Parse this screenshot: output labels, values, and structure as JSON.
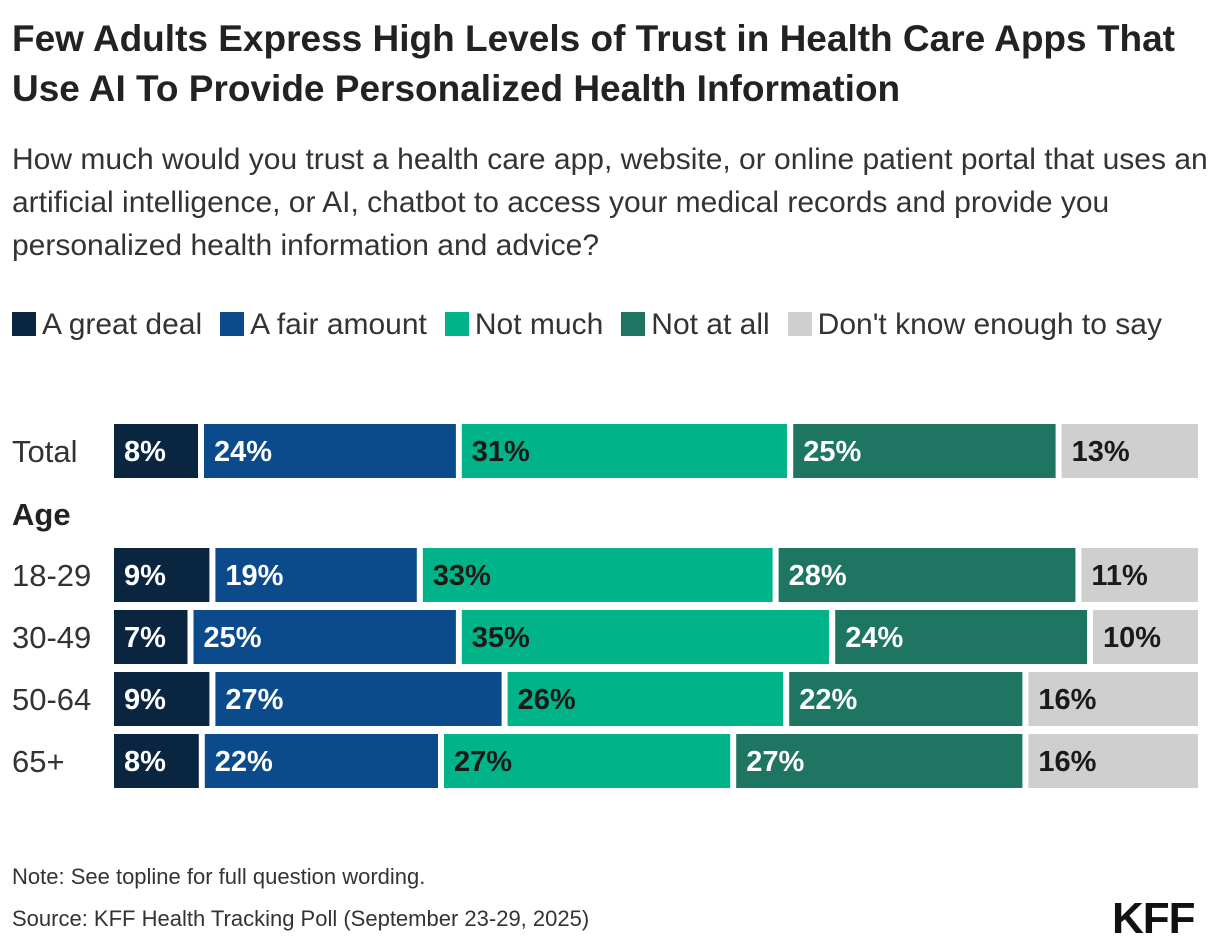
{
  "title": "Few Adults Express High Levels of Trust in Health Care Apps That Use AI To Provide Personalized Health Information",
  "subtitle": "How much would you trust a health care app, website, or online patient portal that uses an artificial intelligence, or AI, chatbot to access your medical records and provide you personalized health information and advice?",
  "note": "Note: See topline for full question wording.",
  "source": "Source: KFF Health Tracking Poll (September 23-29, 2025)",
  "logo": "KFF",
  "chart_data": {
    "type": "bar",
    "orientation": "horizontal",
    "stacked": true,
    "legend_position": "top",
    "value_labels": "percent",
    "series": [
      {
        "name": "A great deal",
        "color": "#0a2540",
        "label_color": "#ffffff"
      },
      {
        "name": "A fair amount",
        "color": "#0b4b8c",
        "label_color": "#ffffff"
      },
      {
        "name": "Not much",
        "color": "#00b388",
        "label_color": "#1a1a1a"
      },
      {
        "name": "Not at all",
        "color": "#1e7561",
        "label_color": "#ffffff"
      },
      {
        "name": "Don't know enough to say",
        "color": "#cfcfcf",
        "label_color": "#1a1a1a"
      }
    ],
    "rows": [
      {
        "label": "Total",
        "values": [
          8,
          24,
          31,
          25,
          13
        ]
      },
      {
        "group": "Age"
      },
      {
        "label": "18-29",
        "values": [
          9,
          19,
          33,
          28,
          11
        ]
      },
      {
        "label": "30-49",
        "values": [
          7,
          25,
          35,
          24,
          10
        ]
      },
      {
        "label": "50-64",
        "values": [
          9,
          27,
          26,
          22,
          16
        ]
      },
      {
        "label": "65+",
        "values": [
          8,
          22,
          27,
          27,
          16
        ]
      }
    ]
  }
}
